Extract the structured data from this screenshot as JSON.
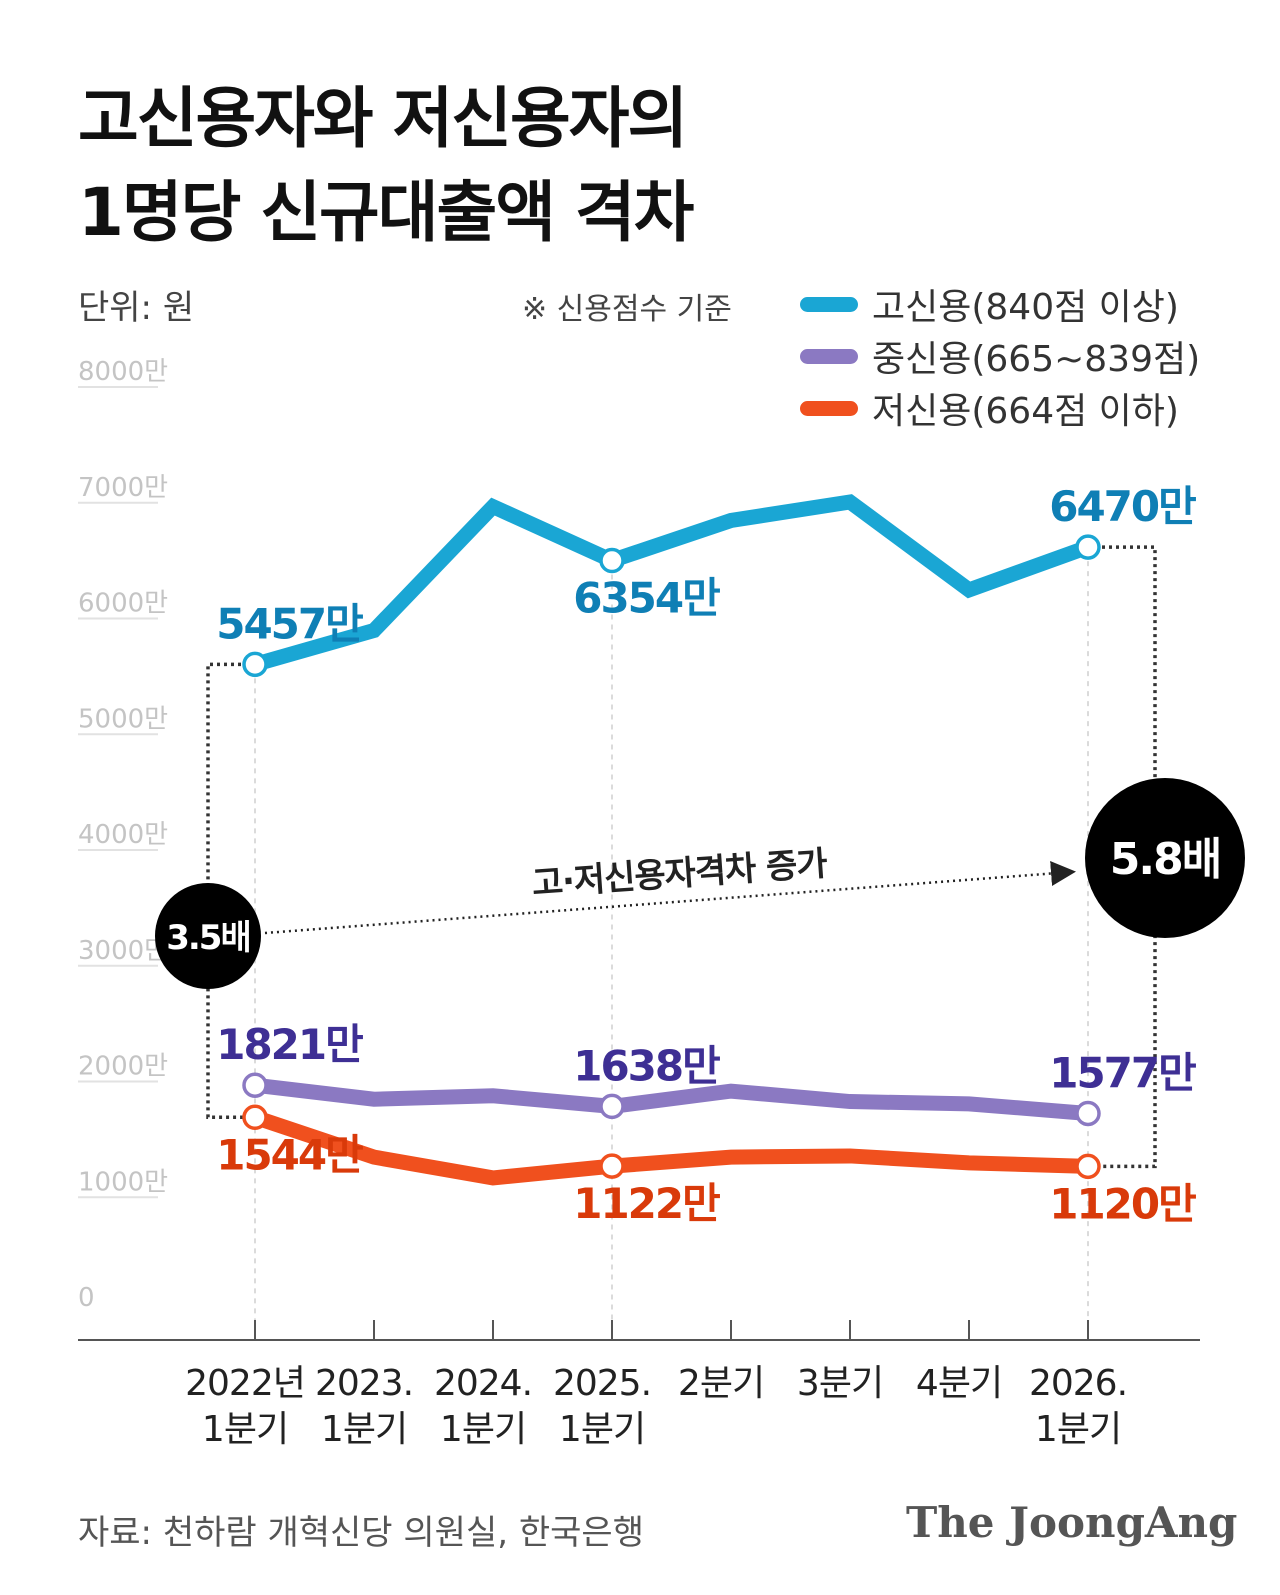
{
  "title_line1": "고신용자와 저신용자의",
  "title_line2": "1명당 신규대출액 격차",
  "unit": "단위: 원",
  "note": "※ 신용점수 기준",
  "source": "자료: 천하람 개혁신당 의원실, 한국은행",
  "brand": "The JoongAng",
  "chart_data": {
    "type": "line",
    "title": "고신용자와 저신용자의 1명당 신규대출액 격차",
    "ylabel": "",
    "ylim": [
      0,
      80000000
    ],
    "yticks": [
      {
        "value": 0,
        "label": "0"
      },
      {
        "value": 10000000,
        "label": "1000만"
      },
      {
        "value": 20000000,
        "label": "2000만"
      },
      {
        "value": 30000000,
        "label": "3000만"
      },
      {
        "value": 40000000,
        "label": "4000만"
      },
      {
        "value": 50000000,
        "label": "5000만"
      },
      {
        "value": 60000000,
        "label": "6000만"
      },
      {
        "value": 70000000,
        "label": "7000만"
      },
      {
        "value": 80000000,
        "label": "8000만"
      }
    ],
    "categories": [
      [
        "2022년",
        "1분기"
      ],
      [
        "2023.",
        "1분기"
      ],
      [
        "2024.",
        "1분기"
      ],
      [
        "2025.",
        "1분기"
      ],
      [
        "2분기"
      ],
      [
        "3분기"
      ],
      [
        "4분기"
      ],
      [
        "2026.",
        "1분기"
      ]
    ],
    "series": [
      {
        "name": "고신용(840점 이상)",
        "color": "#1aa6d4",
        "label_color": "#0f7fb5",
        "values": [
          54570000,
          57500000,
          68200000,
          63540000,
          67000000,
          68600000,
          61000000,
          64700000
        ],
        "point_labels": [
          {
            "index": 0,
            "text": "5457만",
            "place": "above"
          },
          {
            "index": 3,
            "text": "6354만",
            "place": "below"
          },
          {
            "index": 7,
            "text": "6470만",
            "place": "above"
          }
        ]
      },
      {
        "name": "중신용(665~839점)",
        "color": "#8b79c2",
        "label_color": "#3e2f94",
        "values": [
          18210000,
          17000000,
          17300000,
          16380000,
          17700000,
          16800000,
          16600000,
          15770000
        ],
        "point_labels": [
          {
            "index": 0,
            "text": "1821만",
            "place": "above"
          },
          {
            "index": 3,
            "text": "1638만",
            "place": "above"
          },
          {
            "index": 7,
            "text": "1577만",
            "place": "above"
          }
        ]
      },
      {
        "name": "저신용(664점 이하)",
        "color": "#f0501e",
        "label_color": "#d93a0a",
        "values": [
          15440000,
          12000000,
          10200000,
          11220000,
          12000000,
          12100000,
          11500000,
          11200000
        ],
        "point_labels": [
          {
            "index": 0,
            "text": "1544만",
            "place": "below"
          },
          {
            "index": 3,
            "text": "1122만",
            "place": "below"
          },
          {
            "index": 7,
            "text": "1120만",
            "place": "below"
          }
        ]
      }
    ],
    "annotations": {
      "gap_start": "3.5배",
      "gap_end": "5.8배",
      "arrow_label": "고·저신용자격차 증가"
    },
    "legend_placement": "top-right",
    "grid": false
  }
}
